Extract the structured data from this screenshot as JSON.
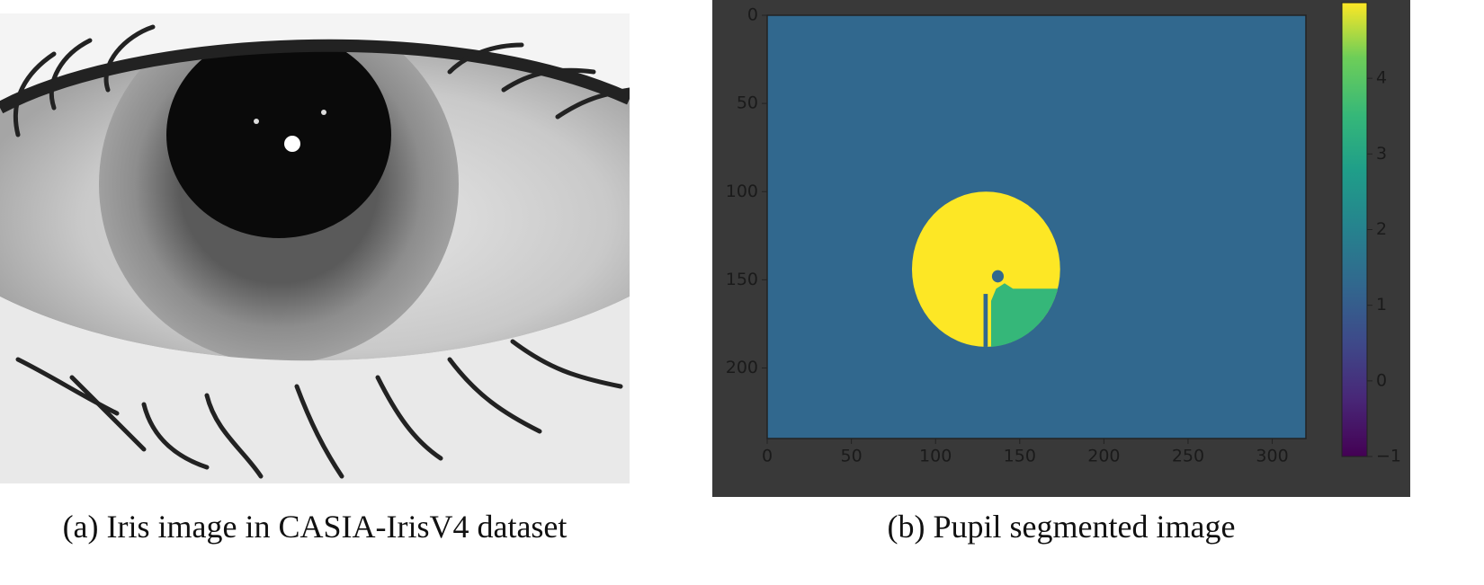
{
  "subfigures": [
    {
      "caption": "(a) Iris image in CASIA-IrisV4 dataset"
    },
    {
      "caption": "(b) Pupil segmented image",
      "heatmap": {
        "xlim": [
          0,
          320
        ],
        "ylim": [
          0,
          240
        ],
        "xticks": [
          0,
          50,
          100,
          150,
          200,
          250,
          300
        ],
        "yticks": [
          0,
          50,
          100,
          150,
          200
        ],
        "clim": [
          -1,
          5
        ],
        "cticks": [
          {
            "value": -1,
            "label": "−1"
          },
          0,
          1,
          2,
          3,
          4
        ],
        "regions": [
          {
            "value": 1,
            "color": "#31688e"
          },
          {
            "value": 5,
            "color": "#fde725"
          },
          {
            "value": 3,
            "color": "#35b779"
          }
        ]
      }
    }
  ]
}
